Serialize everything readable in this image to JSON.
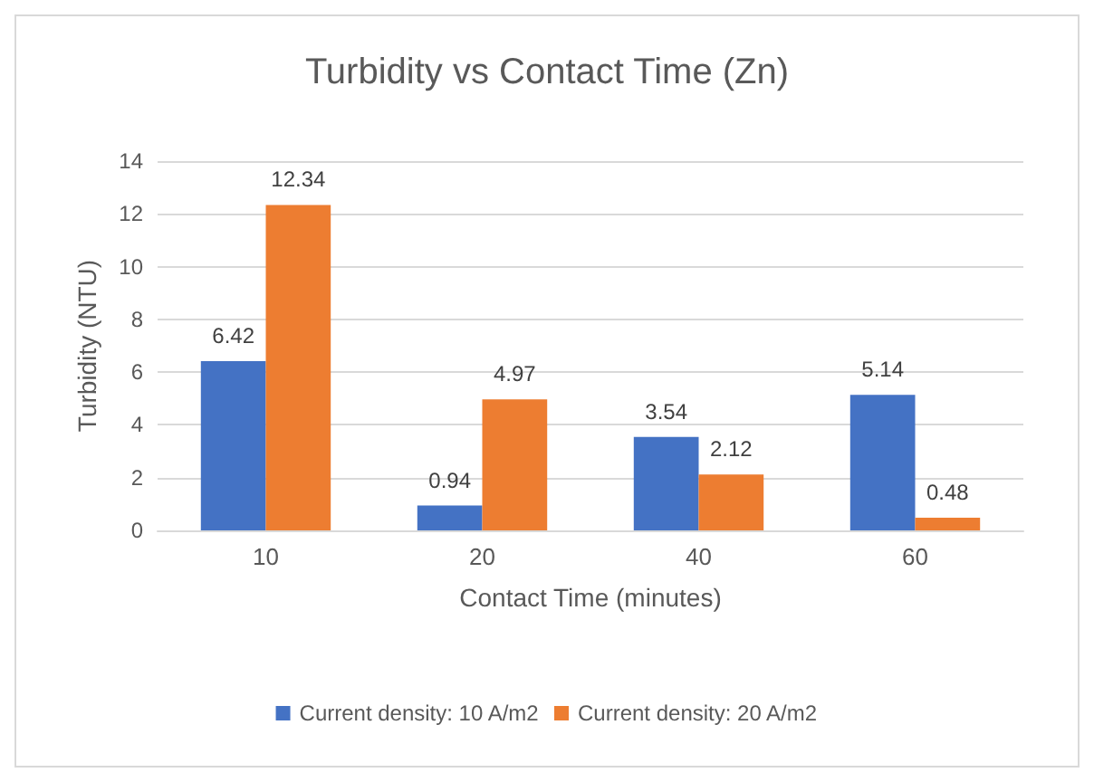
{
  "chart_data": {
    "type": "bar",
    "title": "Turbidity vs Contact Time (Zn)",
    "xlabel": "Contact Time (minutes)",
    "ylabel": "Turbidity (NTU)",
    "categories": [
      "10",
      "20",
      "40",
      "60"
    ],
    "series": [
      {
        "name": "Current density: 10 A/m2",
        "color": "#4472c4",
        "values": [
          6.42,
          0.94,
          3.54,
          5.14
        ]
      },
      {
        "name": "Current density: 20 A/m2",
        "color": "#ed7d31",
        "values": [
          12.34,
          4.97,
          2.12,
          0.48
        ]
      }
    ],
    "ylim": [
      0,
      14
    ],
    "yticks": [
      0,
      2,
      4,
      6,
      8,
      10,
      12,
      14
    ],
    "grid": "y",
    "legend": "bottom",
    "data_labels": true
  }
}
